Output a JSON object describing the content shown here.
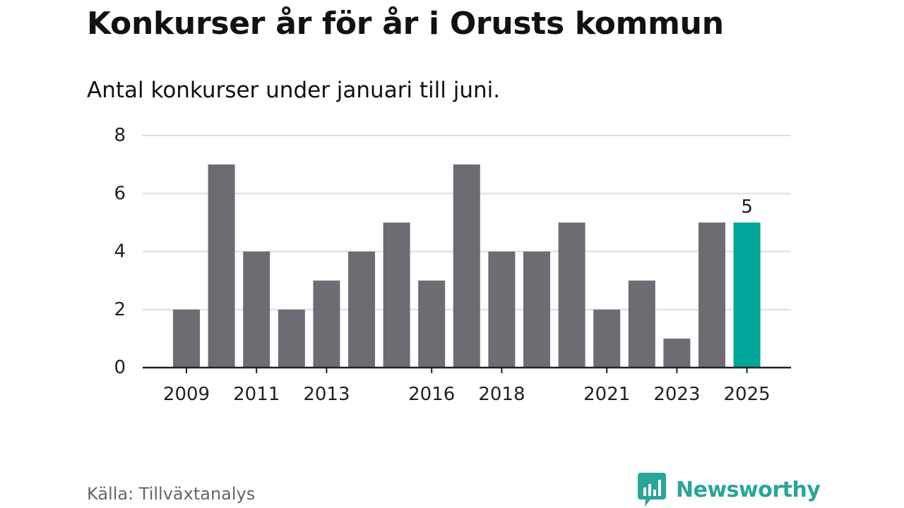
{
  "title": "Konkurser år för år i Orusts kommun",
  "subtitle": "Antal konkurser under januari till juni.",
  "source": "Källa: Tillväxtanalys",
  "brand": {
    "name": "Newsworthy",
    "icon": "newsworthy-chat-bars-icon",
    "color": "#2aa59a"
  },
  "colors": {
    "bar": "#6d6c72",
    "highlight": "#00a69a",
    "grid": "#dddddd",
    "axis": "#222222"
  },
  "chart_data": {
    "type": "bar",
    "title": "Konkurser år för år i Orusts kommun",
    "subtitle": "Antal konkurser under januari till juni.",
    "xlabel": "",
    "ylabel": "",
    "categories": [
      "2009",
      "2010",
      "2011",
      "2012",
      "2013",
      "2014",
      "2015",
      "2016",
      "2017",
      "2018",
      "2019",
      "2020",
      "2021",
      "2022",
      "2023",
      "2024",
      "2025"
    ],
    "values": [
      2,
      7,
      4,
      2,
      3,
      4,
      5,
      3,
      7,
      4,
      4,
      5,
      2,
      3,
      1,
      5,
      5
    ],
    "ylim": [
      0,
      8
    ],
    "yticks": [
      "0",
      "2",
      "4",
      "6",
      "8"
    ],
    "xtick_labels": [
      "2009",
      "2011",
      "2013",
      "2016",
      "2018",
      "2021",
      "2023",
      "2025"
    ],
    "highlight": {
      "category": "2025",
      "label": "5"
    },
    "grid": true
  }
}
